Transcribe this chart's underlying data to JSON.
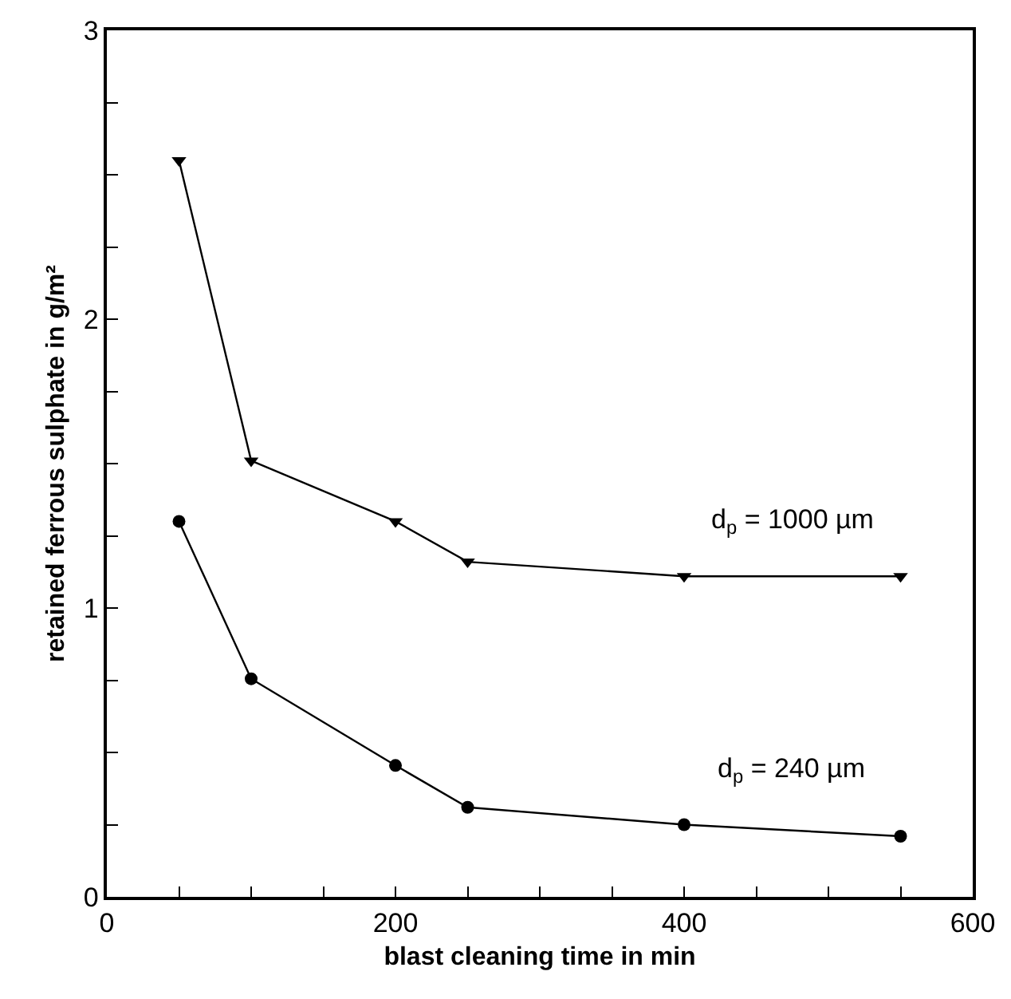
{
  "chart_data": {
    "type": "line",
    "xlabel": "blast cleaning time in min",
    "ylabel": "retained ferrous sulphate in g/m²",
    "x": [
      50,
      100,
      200,
      250,
      400,
      550
    ],
    "series": [
      {
        "name": "d$_{p}$ = 1000 µm",
        "color": "#000000",
        "marker": "triangle",
        "values": [
          2.55,
          1.51,
          1.3,
          1.16,
          1.11,
          1.11
        ]
      },
      {
        "name": "d$_{p}$ = 240 µm",
        "color": "#000000",
        "marker": "circle",
        "values": [
          1.3,
          0.755,
          0.455,
          0.31,
          0.25,
          0.21
        ]
      }
    ],
    "xlim": [
      0,
      600
    ],
    "ylim": [
      0,
      3
    ],
    "xticks": [
      0,
      {
        "value": 50,
        "label": null
      },
      {
        "value": 100,
        "label": null
      },
      {
        "value": 150,
        "label": null
      },
      200,
      {
        "value": 250,
        "label": null
      },
      {
        "value": 300,
        "label": null
      },
      {
        "value": 350,
        "label": null
      },
      400,
      {
        "value": 450,
        "label": null
      },
      {
        "value": 500,
        "label": null
      },
      {
        "value": 550,
        "label": null
      },
      600
    ],
    "yticks": [
      0,
      {
        "value": 0.25,
        "label": null
      },
      {
        "value": 0.5,
        "label": null
      },
      {
        "value": 0.75,
        "label": null
      },
      1,
      {
        "value": 1.25,
        "label": null
      },
      {
        "value": 1.5,
        "label": null
      },
      {
        "value": 1.75,
        "label": null
      },
      2,
      {
        "value": 2.25,
        "label": null
      },
      {
        "value": 2.5,
        "label": null
      },
      {
        "value": 2.75,
        "label": null
      },
      3
    ],
    "legend": false,
    "line_style": "solid"
  }
}
